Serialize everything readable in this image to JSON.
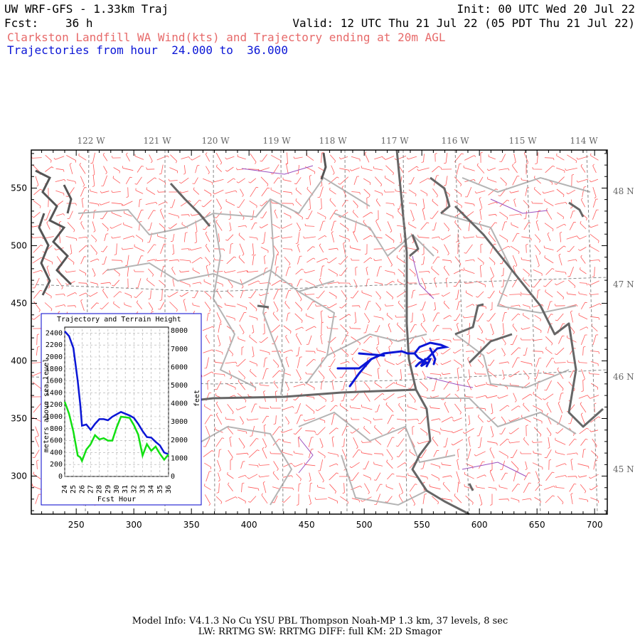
{
  "header": {
    "model": "UW WRF-GFS - 1.33km Traj",
    "init": "Init: 00 UTC Wed 20 Jul 22",
    "fcst_label": "Fcst:",
    "fcst_value": "36 h",
    "valid": "Valid: 12 UTC Thu 21 Jul 22 (05 PDT Thu 21 Jul 22)",
    "subtitle": "Clarkston Landfill WA Wind(kts) and Trajectory ending at 20m AGL",
    "traj_range": "Trajectories from hour  24.000 to  36.000"
  },
  "colors": {
    "header_red": "#e76a6a",
    "traj_blue": "#0b16d6",
    "barb_red": "#ff5a5a",
    "terrain_green": "#12e012",
    "border_gray": "#666666",
    "county_gray": "#b4b4b4",
    "purple": "#9a4fbf"
  },
  "map": {
    "x_ticks": [
      250,
      300,
      350,
      400,
      450,
      500,
      550,
      600,
      650,
      700
    ],
    "y_ticks": [
      300,
      350,
      400,
      450,
      500,
      550
    ],
    "lon_labels": [
      "122 W",
      "121 W",
      "120 W",
      "119 W",
      "118 W",
      "117 W",
      "116 W",
      "115 W",
      "114 W"
    ],
    "lat_labels": [
      "48 N",
      "47 N",
      "46 N",
      "45 N"
    ]
  },
  "inset": {
    "title": "Trajectory and Terrain Height",
    "x_label": "Fcst Hour",
    "y_left_label": "meters above sea level",
    "y_right_label": "feet",
    "x_ticks": [
      "24",
      "25",
      "26",
      "27",
      "28",
      "29",
      "30",
      "31",
      "32",
      "33",
      "34",
      "35",
      "36"
    ],
    "y_left_ticks": [
      "0",
      "200",
      "400",
      "600",
      "800",
      "1000",
      "1200",
      "1400",
      "1600",
      "1800",
      "2000",
      "2200",
      "2400"
    ],
    "y_right_ticks": [
      "0",
      "1000",
      "2000",
      "3000",
      "4000",
      "5000",
      "6000",
      "7000",
      "8000"
    ]
  },
  "chart_data": {
    "type": "line",
    "title": "Trajectory and Terrain Height",
    "xlabel": "Fcst Hour",
    "ylabel": "meters above sea level",
    "y2label": "feet",
    "xlim": [
      24,
      36
    ],
    "ylim": [
      0,
      2500
    ],
    "x": [
      24,
      24.5,
      25,
      25.5,
      25.8,
      26,
      26.5,
      27,
      27.5,
      28,
      28.5,
      29,
      29.5,
      30,
      30.5,
      31,
      31.5,
      32,
      32.5,
      33,
      33.5,
      34,
      34.5,
      35,
      35.5,
      36
    ],
    "series": [
      {
        "color": "#0b16d6",
        "values": [
          2430,
          2350,
          2150,
          1600,
          1200,
          850,
          870,
          780,
          880,
          960,
          960,
          940,
          1000,
          1040,
          1080,
          1050,
          1020,
          980,
          880,
          760,
          660,
          650,
          580,
          520,
          400,
          370
        ]
      },
      {
        "color": "#12e012",
        "values": [
          1250,
          1050,
          750,
          350,
          320,
          260,
          450,
          540,
          690,
          620,
          640,
          600,
          600,
          820,
          1000,
          990,
          980,
          860,
          700,
          350,
          540,
          430,
          500,
          380,
          280,
          370
        ]
      }
    ]
  },
  "footer": {
    "line1": "Model Info: V4.1.3    No Cu    YSU PBL   Thompson     Noah-MP    1.3 km,  37 levels,     8 sec",
    "line2": "LW: RRTMG SW: RRTMG    DIFF: full    KM: 2D Smagor"
  }
}
